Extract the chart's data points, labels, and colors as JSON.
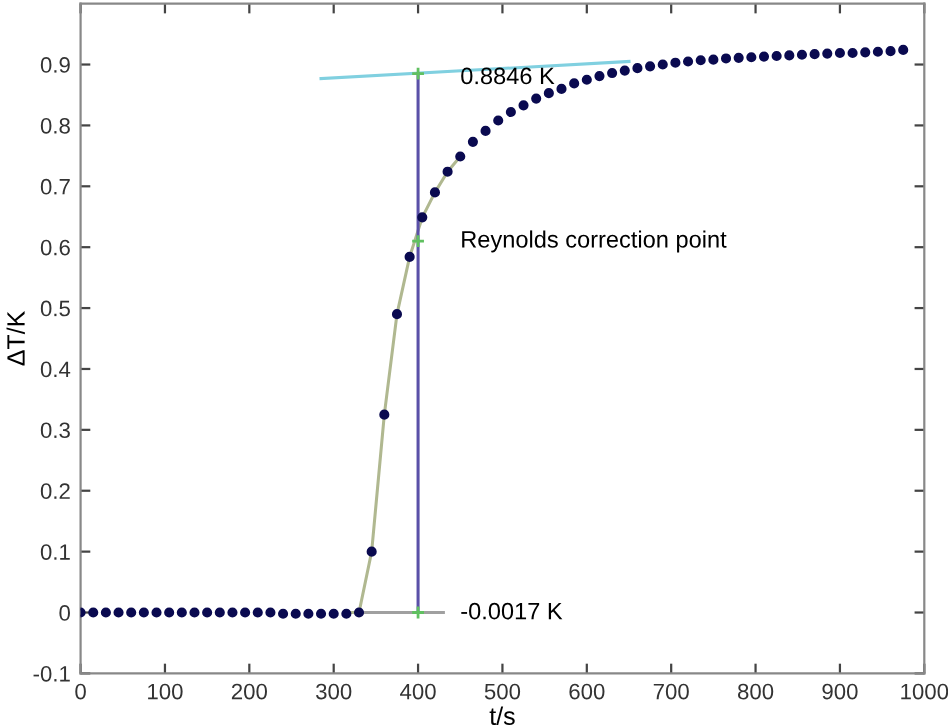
{
  "chart_data": {
    "type": "scatter",
    "xlabel": "t/s",
    "ylabel": "ΔT/K",
    "xlim": [
      0,
      1000
    ],
    "ylim": [
      -0.1,
      1.0
    ],
    "xticks": [
      0,
      100,
      200,
      300,
      400,
      500,
      600,
      700,
      800,
      900,
      1000
    ],
    "yticks": [
      -0.1,
      0,
      0.1,
      0.2,
      0.3,
      0.4,
      0.5,
      0.6,
      0.7,
      0.8,
      0.9
    ],
    "grid": false,
    "legend": false,
    "series": [
      {
        "type": "line",
        "color": "#b0b890",
        "line_style": "solid",
        "marker": "none",
        "x": [
          315,
          330,
          345,
          360,
          375,
          390,
          405,
          420,
          435,
          450
        ],
        "values": [
          0,
          0.0,
          0.1,
          0.325,
          0.49,
          0.584,
          0.649,
          0.69,
          0.724,
          0.749
        ]
      },
      {
        "type": "line",
        "color": "#80d0e0",
        "line_style": "solid",
        "marker": "none",
        "x": [
          285,
          650
        ],
        "values": [
          0.877,
          0.905
        ]
      },
      {
        "type": "line",
        "color": "#a0a0a0",
        "line_style": "solid",
        "marker": "none",
        "x": [
          330,
          430
        ],
        "values": [
          0,
          0
        ]
      },
      {
        "type": "line",
        "color": "#5a50a8",
        "line_style": "solid",
        "marker": "none",
        "x": [
          400,
          400
        ],
        "values": [
          0,
          0.885
        ]
      },
      {
        "color": "#0a0a50",
        "marker": "circle",
        "x": [
          0,
          15,
          30,
          45,
          60,
          75,
          90,
          105,
          120,
          135,
          150,
          165,
          180,
          195,
          210,
          225,
          240,
          255,
          270,
          285,
          300,
          315,
          330,
          345,
          360,
          375,
          390,
          405,
          420,
          435,
          450,
          465,
          480,
          495,
          510,
          525,
          540,
          555,
          570,
          585,
          600,
          615,
          630,
          645,
          660,
          675,
          690,
          705,
          720,
          735,
          750,
          765,
          780,
          795,
          810,
          825,
          840,
          855,
          870,
          885,
          900,
          915,
          930,
          945,
          960,
          975
        ],
        "values": [
          0,
          0,
          0,
          0,
          0,
          0,
          0,
          0,
          0,
          0,
          0,
          0,
          0,
          0,
          0,
          0,
          -0.002,
          -0.002,
          -0.002,
          -0.002,
          -0.002,
          -0.002,
          0,
          0.1,
          0.325,
          0.49,
          0.584,
          0.649,
          0.69,
          0.724,
          0.749,
          0.773,
          0.791,
          0.808,
          0.822,
          0.833,
          0.844,
          0.853,
          0.86,
          0.869,
          0.875,
          0.881,
          0.886,
          0.89,
          0.894,
          0.897,
          0.9,
          0.903,
          0.905,
          0.907,
          0.908,
          0.91,
          0.911,
          0.912,
          0.913,
          0.914,
          0.915,
          0.916,
          0.917,
          0.918,
          0.919,
          0.919,
          0.92,
          0.921,
          0.922,
          0.924
        ]
      },
      {
        "type": "scatter",
        "color": "#60c060",
        "marker": "cross",
        "x": [
          400,
          400,
          400
        ],
        "values": [
          0.61,
          0.885,
          0
        ]
      }
    ],
    "annotations": [
      "0.8846 K",
      "Reynolds correction point",
      "-0.0017 K"
    ]
  }
}
